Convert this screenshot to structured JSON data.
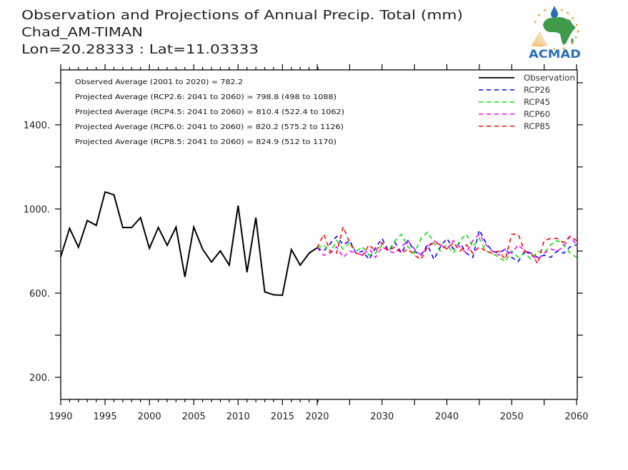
{
  "header": {
    "title": "Observation and Projections of Annual Precip. Total (mm)",
    "location": "Chad_AM-TIMAN",
    "coordinates": "Lon=20.28333 : Lat=11.03333"
  },
  "logo": {
    "text": "ACMAD",
    "colors": {
      "blue": "#2a6fb5",
      "green": "#3f9b4a",
      "orange": "#f0a030"
    }
  },
  "chart_data": {
    "type": "line",
    "title": "Observation and Projections of Annual Precip. Total (mm)",
    "xlabel": "",
    "ylabel": "",
    "ylim": [
      95,
      1661
    ],
    "grid": false,
    "legend_position": "top-right",
    "x_segments": [
      {
        "name": "observation-axis",
        "range": [
          1990,
          2019
        ],
        "major_ticks": [
          1990,
          1995,
          2000,
          2005,
          2010,
          2015
        ],
        "minor_step": 1
      },
      {
        "name": "projection-axis",
        "range": [
          2020,
          2060
        ],
        "major_ticks": [
          2020,
          2030,
          2040,
          2050,
          2060
        ],
        "minor_ticks": [
          2025,
          2035,
          2045,
          2055
        ]
      }
    ],
    "x_tick_labels": [
      {
        "year": 1990,
        "segment": 0,
        "label": "1990"
      },
      {
        "year": 1995,
        "segment": 0,
        "label": "1995"
      },
      {
        "year": 2000,
        "segment": 0,
        "label": "2000"
      },
      {
        "year": 2005,
        "segment": 0,
        "label": "2005"
      },
      {
        "year": 2010,
        "segment": 0,
        "label": "2010"
      },
      {
        "year": 2015,
        "segment": 0,
        "label": "2015"
      },
      {
        "year": 2020,
        "segment": 1,
        "label": "2020"
      },
      {
        "year": 2030,
        "segment": 1,
        "label": "2030"
      },
      {
        "year": 2040,
        "segment": 1,
        "label": "2040"
      },
      {
        "year": 2050,
        "segment": 1,
        "label": "2050"
      },
      {
        "year": 2060,
        "segment": 1,
        "label": "2060"
      }
    ],
    "y_ticks": [
      200,
      400,
      600,
      800,
      1000,
      1200,
      1400,
      1600
    ],
    "y_tick_labels": [
      {
        "value": 200,
        "label": "200."
      },
      {
        "value": 600,
        "label": "600."
      },
      {
        "value": 1000,
        "label": "1000."
      },
      {
        "value": 1400,
        "label": "1400."
      }
    ],
    "annotations": [
      "Observed Average (2001 to 2020) = 782.2",
      "Projected Average (RCP2.6: 2041 to 2060) = 798.8 (498 to 1088)",
      "Projected Average (RCP4.5: 2041 to 2060) = 810.4 (522.4 to 1062)",
      "Projected Average (RCP6.0: 2041 to 2060) = 820.2 (575.2 to 1126)",
      "Projected Average (RCP8.5: 2041 to 2060) = 824.9 (512 to 1170)"
    ],
    "series": [
      {
        "name": "Observation",
        "color": "#000000",
        "style": "solid",
        "segment": 0,
        "start_year": 1990,
        "values": [
          773,
          908,
          818,
          945,
          922,
          1081,
          1067,
          912,
          912,
          959,
          813,
          912,
          827,
          914,
          677,
          914,
          809,
          748,
          801,
          733,
          1016,
          699,
          959,
          606,
          592,
          590,
          807,
          733,
          790,
          818
        ]
      },
      {
        "name": "RCP26",
        "color": "#0000ff",
        "style": "dashed",
        "segment": 1,
        "start_year": 2020,
        "values": [
          815,
          800,
          835,
          870,
          830,
          850,
          790,
          800,
          760,
          815,
          860,
          800,
          840,
          790,
          850,
          800,
          780,
          830,
          760,
          820,
          860,
          810,
          840,
          790,
          770,
          900,
          840,
          800,
          790,
          810,
          770,
          750,
          800,
          790,
          770,
          780,
          770,
          800,
          790,
          820,
          830
        ]
      },
      {
        "name": "RCP45",
        "color": "#00e000",
        "style": "dashed",
        "segment": 1,
        "start_year": 2020,
        "values": [
          815,
          830,
          790,
          850,
          810,
          840,
          800,
          820,
          780,
          790,
          830,
          800,
          850,
          880,
          820,
          790,
          860,
          890,
          840,
          800,
          830,
          790,
          850,
          880,
          820,
          860,
          800,
          790,
          770,
          750,
          800,
          770,
          790,
          760,
          800,
          790,
          830,
          850,
          830,
          790,
          770
        ]
      },
      {
        "name": "RCP60",
        "color": "#ff00ff",
        "style": "dashed",
        "segment": 1,
        "start_year": 2020,
        "values": [
          815,
          780,
          790,
          820,
          770,
          800,
          790,
          780,
          810,
          770,
          820,
          800,
          790,
          820,
          850,
          810,
          780,
          820,
          850,
          830,
          810,
          850,
          820,
          790,
          850,
          880,
          830,
          800,
          780,
          810,
          790,
          830,
          800,
          780,
          760,
          790,
          810,
          800,
          820,
          870,
          830
        ]
      },
      {
        "name": "RCP85",
        "color": "#ff0000",
        "style": "dashed",
        "segment": 1,
        "start_year": 2020,
        "values": [
          815,
          880,
          800,
          790,
          915,
          840,
          790,
          780,
          830,
          800,
          840,
          800,
          820,
          790,
          810,
          780,
          760,
          820,
          840,
          830,
          810,
          840,
          800,
          830,
          790,
          820,
          800,
          790,
          800,
          760,
          880,
          880,
          800,
          790,
          740,
          850,
          860,
          860,
          840,
          870,
          850
        ]
      }
    ]
  }
}
